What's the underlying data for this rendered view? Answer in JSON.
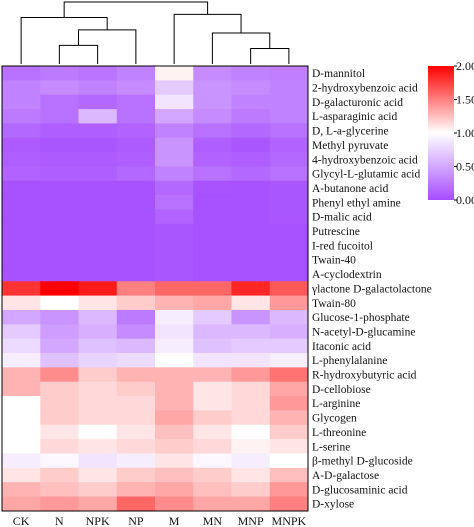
{
  "chart_data": {
    "type": "heatmap",
    "columns": [
      "CK",
      "N",
      "NPK",
      "NP",
      "M",
      "MN",
      "MNP",
      "MNPK"
    ],
    "rows": [
      "D-mannitol",
      "2-hydroxybenzoic acid",
      "D-galacturonic acid",
      "L-asparaginic acid",
      "D, L-a-glycerine",
      "Methyl pyruvate",
      "4-hydroxybenzoic acid",
      "Glycyl-L-glutamic acid",
      "A-butanone acid",
      "Phenyl ethyl amine",
      "D-malic acid",
      "Putrescine",
      "I-red fucoitol",
      "Twain-40",
      "A-cyclodextrin",
      "γlactone D-galactolactone",
      "Twain-80",
      "Glucose-1-phosphate",
      "N-acetyl-D-glucamine",
      "Itaconic acid",
      "L-phenylalanine",
      "R-hydroxybutyric acid",
      "D-cellobiose",
      "L-arginine",
      "Glycogen",
      "L-threonine",
      "L-serine",
      "β-methyl D-glucoside",
      "A-D-galactose",
      "D-glucosaminic acid",
      "D-xylose"
    ],
    "values": [
      [
        0.2,
        0.25,
        0.22,
        0.3,
        1.05,
        0.35,
        0.3,
        0.28
      ],
      [
        0.3,
        0.35,
        0.3,
        0.35,
        0.7,
        0.4,
        0.35,
        0.3
      ],
      [
        0.3,
        0.2,
        0.15,
        0.2,
        0.85,
        0.4,
        0.3,
        0.3
      ],
      [
        0.25,
        0.2,
        0.6,
        0.2,
        0.5,
        0.35,
        0.25,
        0.3
      ],
      [
        0.15,
        0.1,
        0.1,
        0.12,
        0.3,
        0.2,
        0.15,
        0.2
      ],
      [
        0.08,
        0.05,
        0.05,
        0.08,
        0.4,
        0.1,
        0.05,
        0.12
      ],
      [
        0.1,
        0.08,
        0.08,
        0.1,
        0.4,
        0.12,
        0.1,
        0.15
      ],
      [
        0.12,
        0.1,
        0.1,
        0.15,
        0.3,
        0.2,
        0.15,
        0.2
      ],
      [
        0.02,
        0.02,
        0.02,
        0.02,
        0.15,
        0.03,
        0.02,
        0.05
      ],
      [
        0.02,
        0.02,
        0.02,
        0.02,
        0.2,
        0.02,
        0.02,
        0.05
      ],
      [
        0.02,
        0.02,
        0.02,
        0.02,
        0.12,
        0.02,
        0.02,
        0.05
      ],
      [
        0.02,
        0.02,
        0.02,
        0.02,
        0.05,
        0.02,
        0.02,
        0.02
      ],
      [
        0.02,
        0.02,
        0.02,
        0.02,
        0.05,
        0.02,
        0.02,
        0.02
      ],
      [
        0.02,
        0.02,
        0.02,
        0.02,
        0.05,
        0.02,
        0.02,
        0.02
      ],
      [
        0.02,
        0.02,
        0.02,
        0.02,
        0.05,
        0.02,
        0.02,
        0.02
      ],
      [
        1.8,
        2.0,
        1.9,
        1.5,
        1.6,
        1.6,
        1.85,
        1.65
      ],
      [
        1.1,
        1.0,
        1.1,
        1.2,
        1.3,
        1.35,
        1.1,
        1.4
      ],
      [
        0.5,
        0.4,
        0.6,
        0.25,
        0.9,
        0.7,
        0.4,
        0.6
      ],
      [
        0.7,
        0.45,
        0.55,
        0.35,
        0.85,
        0.6,
        0.6,
        0.55
      ],
      [
        0.8,
        0.5,
        0.65,
        0.6,
        0.9,
        0.65,
        0.7,
        0.7
      ],
      [
        0.9,
        0.65,
        0.75,
        0.8,
        1.0,
        0.85,
        0.85,
        0.9
      ],
      [
        1.3,
        1.45,
        1.2,
        1.3,
        1.3,
        1.3,
        1.4,
        1.55
      ],
      [
        1.3,
        1.2,
        1.15,
        1.2,
        1.3,
        1.1,
        1.15,
        1.35
      ],
      [
        1.0,
        1.2,
        1.15,
        1.15,
        1.3,
        1.1,
        1.15,
        1.4
      ],
      [
        1.0,
        1.2,
        1.15,
        1.15,
        1.35,
        1.2,
        1.15,
        1.3
      ],
      [
        1.0,
        1.1,
        1.0,
        1.1,
        1.25,
        1.1,
        1.0,
        1.2
      ],
      [
        1.0,
        1.15,
        1.1,
        1.15,
        1.2,
        1.15,
        1.05,
        1.1
      ],
      [
        0.9,
        0.95,
        0.85,
        0.9,
        1.1,
        0.95,
        0.9,
        1.0
      ],
      [
        1.1,
        1.2,
        1.1,
        1.2,
        1.25,
        1.2,
        1.1,
        1.25
      ],
      [
        1.3,
        1.25,
        1.2,
        1.3,
        1.35,
        1.25,
        1.2,
        1.4
      ],
      [
        1.35,
        1.4,
        1.35,
        1.6,
        1.45,
        1.35,
        1.35,
        1.5
      ]
    ],
    "color_scale": {
      "min": 0.0,
      "mid": 1.0,
      "max": 2.0,
      "low_color": "#a64dff",
      "mid_color": "#ffffff",
      "high_color": "#ff0000",
      "ticks": [
        "2.00",
        "1.50",
        "1.00",
        "0.50",
        "0.00"
      ]
    },
    "column_dendrogram": {
      "leaf_order": [
        "CK",
        "N",
        "NPK",
        "NP",
        "M",
        "MN",
        "MNP",
        "MNPK"
      ],
      "merges": [
        {
          "left": 1,
          "right": 2,
          "height": 0.3
        },
        {
          "left": -1,
          "right": 3,
          "height": 0.55
        },
        {
          "left": 0,
          "right": -2,
          "height": 0.75
        },
        {
          "left": 6,
          "right": 7,
          "height": 0.25
        },
        {
          "left": 5,
          "right": -4,
          "height": 0.5
        },
        {
          "left": 4,
          "right": -5,
          "height": 0.8
        },
        {
          "left": -3,
          "right": -6,
          "height": 1.0
        }
      ]
    }
  }
}
